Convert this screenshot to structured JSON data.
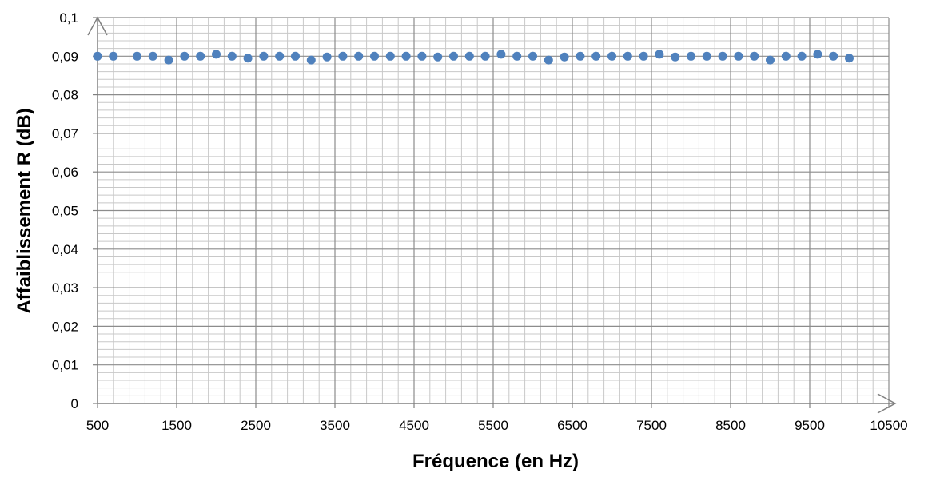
{
  "chart_data": {
    "type": "scatter",
    "title": "",
    "xlabel": "Fréquence (en Hz)",
    "ylabel": "Affaiblissement R (dB)",
    "xlim": [
      500,
      10500
    ],
    "ylim": [
      0,
      0.1
    ],
    "x_ticks": [
      "500",
      "1500",
      "2500",
      "3500",
      "4500",
      "5500",
      "6500",
      "7500",
      "8500",
      "9500",
      "10500"
    ],
    "y_ticks": [
      "0",
      "0,01",
      "0,02",
      "0,03",
      "0,04",
      "0,05",
      "0,06",
      "0,07",
      "0,08",
      "0,09",
      "0,1"
    ],
    "grid": true,
    "legend": "none",
    "marker_color": "#4F81BD",
    "series": [
      {
        "x": [
          500,
          700,
          1000,
          1200,
          1400,
          1600,
          1800,
          2000,
          2200,
          2400,
          2600,
          2800,
          3000,
          3200,
          3400,
          3600,
          3800,
          4000,
          4200,
          4400,
          4600,
          4800,
          5000,
          5200,
          5400,
          5600,
          5800,
          6000,
          6200,
          6400,
          6600,
          6800,
          7000,
          7200,
          7400,
          7600,
          7800,
          8000,
          8200,
          8400,
          8600,
          8800,
          9000,
          9200,
          9400,
          9600,
          9800,
          10000
        ],
        "y": [
          0.09,
          0.09,
          0.09,
          0.09,
          0.089,
          0.09,
          0.09,
          0.0905,
          0.09,
          0.0895,
          0.09,
          0.09,
          0.09,
          0.089,
          0.0898,
          0.09,
          0.09,
          0.09,
          0.09,
          0.09,
          0.09,
          0.0898,
          0.09,
          0.09,
          0.09,
          0.0905,
          0.09,
          0.09,
          0.089,
          0.0898,
          0.09,
          0.09,
          0.09,
          0.09,
          0.09,
          0.0905,
          0.0898,
          0.09,
          0.09,
          0.09,
          0.09,
          0.09,
          0.089,
          0.09,
          0.09,
          0.0905,
          0.09,
          0.0895
        ]
      }
    ]
  }
}
